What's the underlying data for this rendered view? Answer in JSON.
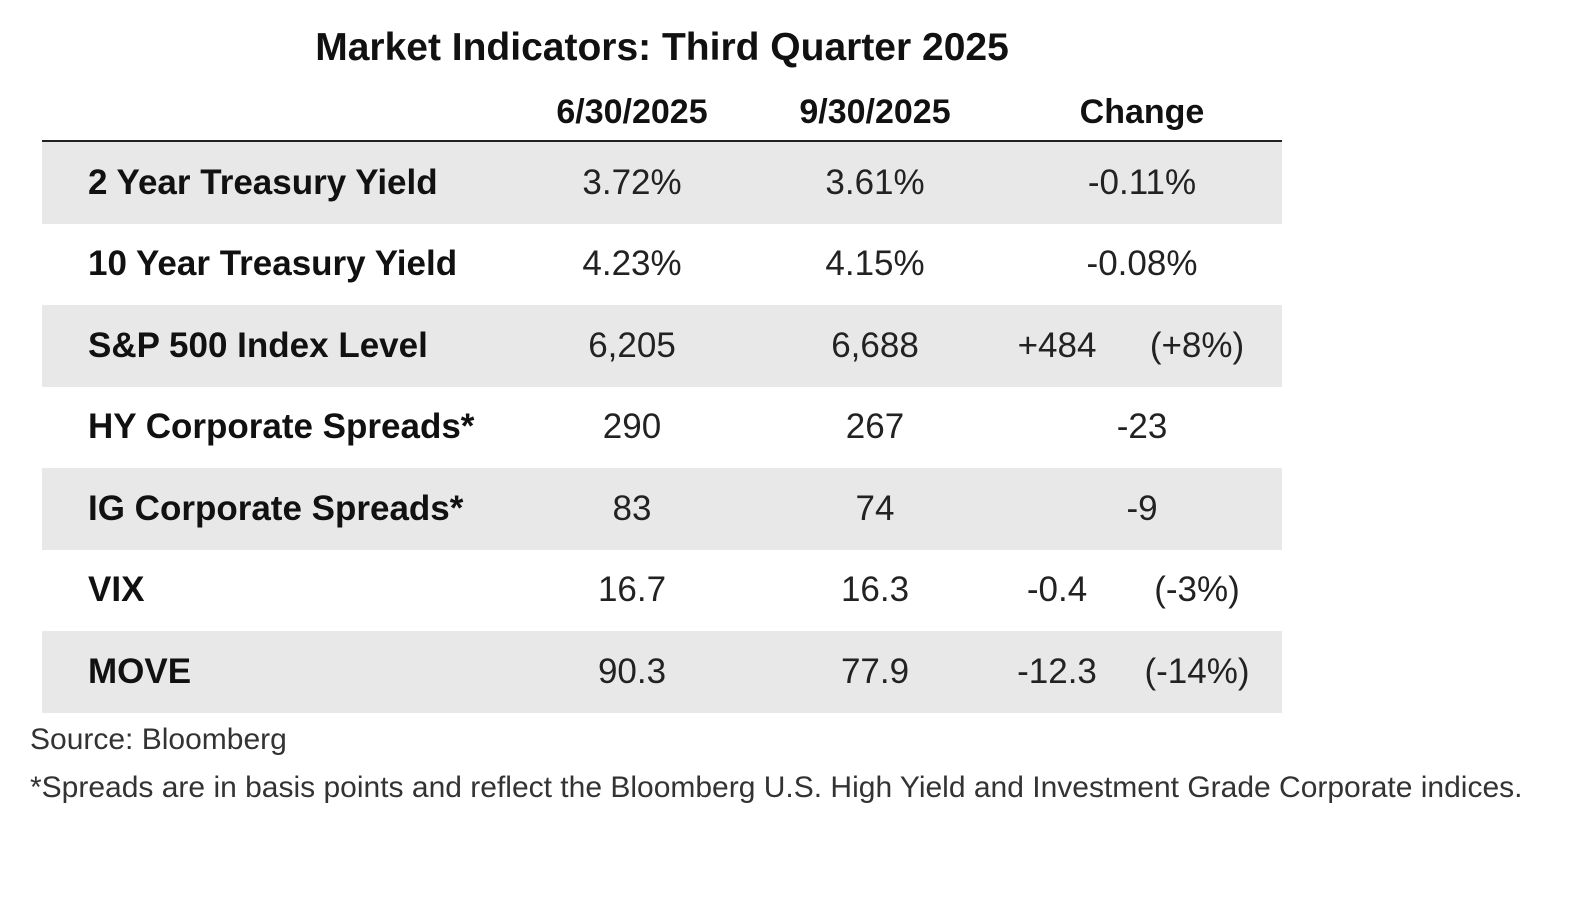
{
  "title": "Market Indicators: Third Quarter 2025",
  "columns": [
    "6/30/2025",
    "9/30/2025",
    "Change"
  ],
  "rows": [
    {
      "label": "2 Year Treasury Yield",
      "v1": "3.72%",
      "v2": "3.61%",
      "change": "-0.11%",
      "pct": ""
    },
    {
      "label": "10 Year Treasury Yield",
      "v1": "4.23%",
      "v2": "4.15%",
      "change": "-0.08%",
      "pct": ""
    },
    {
      "label": "S&P 500 Index Level",
      "v1": "6,205",
      "v2": "6,688",
      "change": "+484",
      "pct": "(+8%)"
    },
    {
      "label": "HY Corporate Spreads*",
      "v1": "290",
      "v2": "267",
      "change": "-23",
      "pct": ""
    },
    {
      "label": "IG Corporate Spreads*",
      "v1": "83",
      "v2": "74",
      "change": "-9",
      "pct": ""
    },
    {
      "label": "VIX",
      "v1": "16.7",
      "v2": "16.3",
      "change": "-0.4",
      "pct": "(-3%)"
    },
    {
      "label": "MOVE",
      "v1": "90.3",
      "v2": "77.9",
      "change": "-12.3",
      "pct": "(-14%)"
    }
  ],
  "source": "Source: Bloomberg",
  "note": " *Spreads are in basis points and reflect the Bloomberg U.S. High Yield and Investment Grade Corporate indices."
}
